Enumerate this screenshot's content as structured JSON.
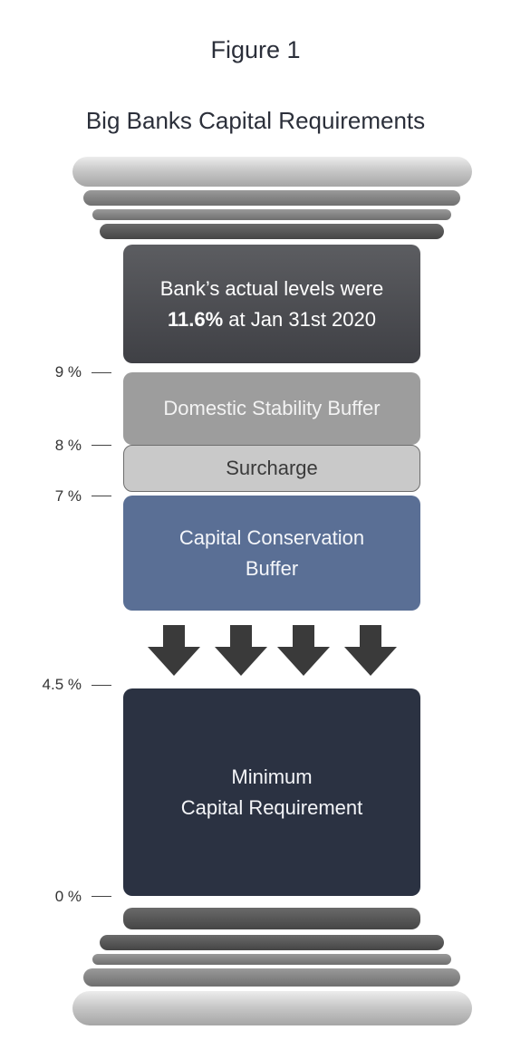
{
  "figure_label": "Figure 1",
  "title": "Big Banks Capital Requirements",
  "blocks": {
    "actual": {
      "line1": "Bank’s actual levels were",
      "line2_bold": "11.6%",
      "line2_rest": " at Jan 31st 2020"
    },
    "domestic_stability_buffer": "Domestic Stability Buffer",
    "surcharge": "Surcharge",
    "capital_conservation_buffer": {
      "line1": "Capital Conservation",
      "line2": "Buffer"
    },
    "minimum_capital_requirement": {
      "line1": "Minimum",
      "line2": "Capital Requirement"
    }
  },
  "scale_labels": [
    "9 %",
    "8 %",
    "7 %",
    "4.5 %",
    "0 %"
  ],
  "colors": {
    "actual": "#4a4b50",
    "domestic_stability_buffer": "#9d9d9d",
    "surcharge": "#c9c9c9",
    "capital_conservation_buffer": "#5a6f95",
    "minimum_capital_requirement": "#2b3242",
    "arrows": "#3a3a3a"
  },
  "icons": [
    "down-arrow-icon",
    "down-arrow-icon",
    "down-arrow-icon",
    "down-arrow-icon"
  ]
}
